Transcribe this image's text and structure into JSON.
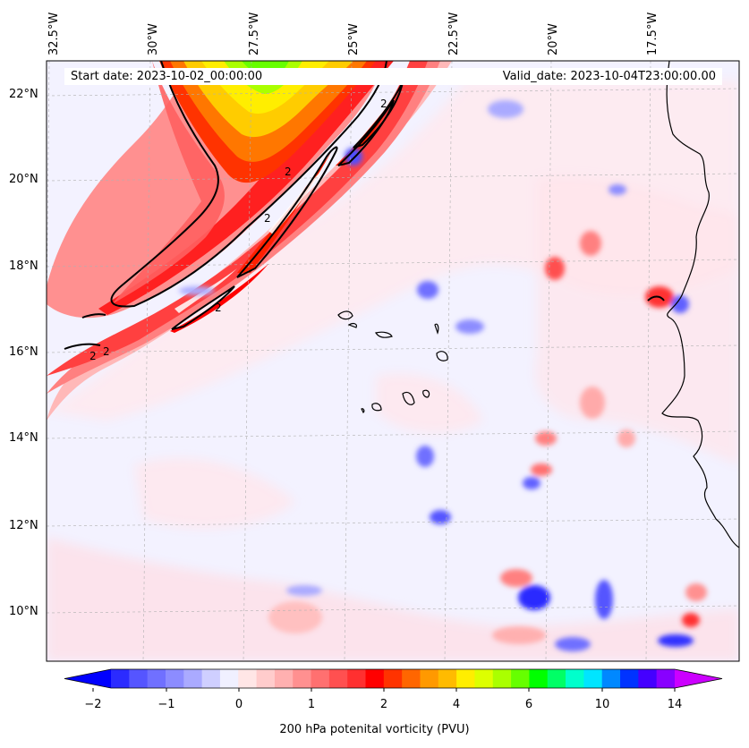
{
  "header": {
    "start_date": "Start date: 2023-10-02_00:00:00",
    "valid_date": "Valid_date: 2023-10-04T23:00:00.00"
  },
  "axes": {
    "lon_labels": [
      "32.5°W",
      "30°W",
      "27.5°W",
      "25°W",
      "22.5°W",
      "20°W",
      "17.5°W"
    ],
    "lat_labels": [
      "22°N",
      "20°N",
      "18°N",
      "16°N",
      "14°N",
      "12°N",
      "10°N"
    ]
  },
  "contour_label": "2",
  "colorbar": {
    "label": "200 hPa potenital vorticity (PVU)",
    "tick_labels": [
      "−2",
      "−1",
      "0",
      "1",
      "2",
      "4",
      "6",
      "10",
      "14"
    ],
    "colors": [
      "#0000ff",
      "#2b2bff",
      "#5555ff",
      "#7070ff",
      "#8c8cff",
      "#aaaaff",
      "#cfcfff",
      "#f0f0ff",
      "#ffe6e6",
      "#ffcccc",
      "#ffb0b0",
      "#ff9090",
      "#ff7070",
      "#ff5050",
      "#ff3030",
      "#ff0000",
      "#ff3300",
      "#ff6600",
      "#ff9900",
      "#ffbb00",
      "#ffee00",
      "#ddff00",
      "#aaff00",
      "#66ff00",
      "#00ff00",
      "#00ff66",
      "#00ffcc",
      "#00e5ff",
      "#0088ff",
      "#0033ff",
      "#4400ff",
      "#8800ff",
      "#cc00ff"
    ]
  }
}
